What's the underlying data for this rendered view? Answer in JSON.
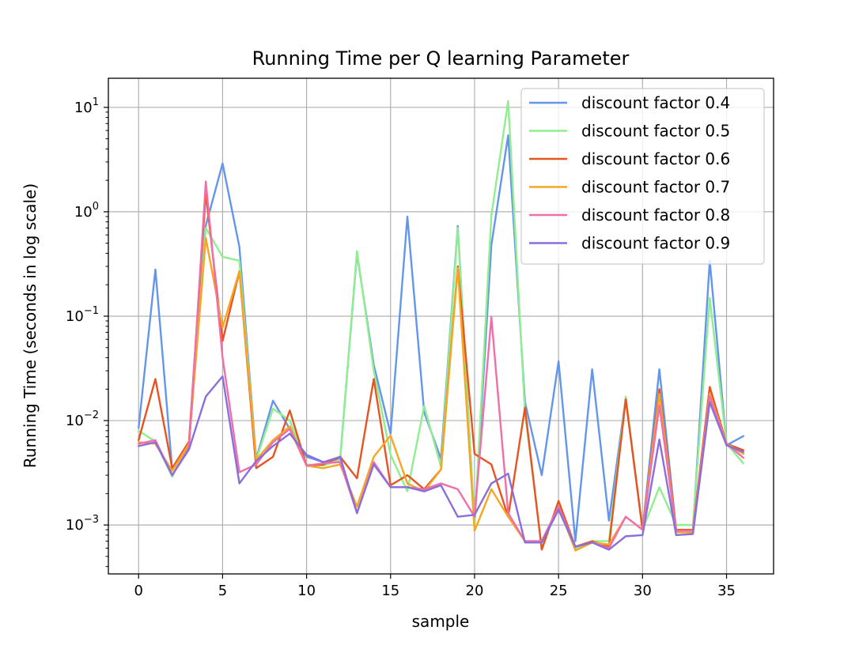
{
  "chart_data": {
    "type": "line",
    "title": "Running Time per Q learning Parameter",
    "xlabel": "sample",
    "ylabel": "Running Time (seconds in log scale)",
    "xlim": [
      -1.8,
      37.8
    ],
    "ylim": [
      0.00034,
      19
    ],
    "yscale": "log",
    "grid": true,
    "legend_position": "top-right",
    "x_ticks": [
      0,
      5,
      10,
      15,
      20,
      25,
      30,
      35
    ],
    "y_ticks": [
      {
        "value": 0.001,
        "base": "10",
        "exp": "−3"
      },
      {
        "value": 0.01,
        "base": "10",
        "exp": "−2"
      },
      {
        "value": 0.1,
        "base": "10",
        "exp": "−1"
      },
      {
        "value": 1,
        "base": "10",
        "exp": "0"
      },
      {
        "value": 10,
        "base": "10",
        "exp": "1"
      }
    ],
    "x": [
      0,
      1,
      2,
      3,
      4,
      5,
      6,
      7,
      8,
      9,
      10,
      11,
      12,
      13,
      14,
      15,
      16,
      17,
      18,
      19,
      20,
      21,
      22,
      23,
      24,
      25,
      26,
      27,
      28,
      29,
      30,
      31,
      32,
      33,
      34,
      35,
      36
    ],
    "series": [
      {
        "name": "discount factor 0.4",
        "color": "#6495ED",
        "values": [
          0.0085,
          0.28,
          0.0034,
          0.0058,
          0.74,
          2.9,
          0.46,
          0.0043,
          0.0155,
          0.0083,
          0.0045,
          0.004,
          0.0043,
          0.4,
          0.034,
          0.0075,
          0.9,
          0.012,
          0.0043,
          0.73,
          0.001,
          0.48,
          5.4,
          0.015,
          0.003,
          0.037,
          0.0007,
          0.031,
          0.0011,
          0.0165,
          0.0009,
          0.031,
          0.0009,
          0.0009,
          0.34,
          0.0058,
          0.0071
        ]
      },
      {
        "name": "discount factor 0.5",
        "color": "#90EE90",
        "values": [
          0.008,
          0.0063,
          0.0029,
          0.0063,
          0.7,
          0.37,
          0.34,
          0.0042,
          0.013,
          0.01,
          0.0038,
          0.0037,
          0.0042,
          0.42,
          0.03,
          0.0047,
          0.0021,
          0.0138,
          0.0036,
          0.7,
          0.001,
          0.92,
          11.5,
          0.012,
          0.0006,
          0.0016,
          0.0006,
          0.0007,
          0.0007,
          0.017,
          0.0009,
          0.0023,
          0.001,
          0.001,
          0.15,
          0.006,
          0.0039
        ]
      },
      {
        "name": "discount factor 0.6",
        "color": "#E9531F",
        "values": [
          0.0065,
          0.025,
          0.0035,
          0.0063,
          1.5,
          0.058,
          0.27,
          0.0035,
          0.0045,
          0.0125,
          0.0037,
          0.0038,
          0.0045,
          0.0028,
          0.025,
          0.0024,
          0.003,
          0.0022,
          0.0034,
          0.3,
          0.0048,
          0.0038,
          0.0012,
          0.0133,
          0.00058,
          0.0017,
          0.00062,
          0.0007,
          0.00062,
          0.016,
          0.0009,
          0.02,
          0.0009,
          0.0009,
          0.021,
          0.006,
          0.0052
        ]
      },
      {
        "name": "discount factor 0.7",
        "color": "#F5A623",
        "values": [
          0.0062,
          0.006,
          0.0033,
          0.006,
          0.56,
          0.078,
          0.27,
          0.0042,
          0.0065,
          0.0088,
          0.0037,
          0.0035,
          0.0038,
          0.0015,
          0.0045,
          0.0072,
          0.0025,
          0.0021,
          0.0034,
          0.29,
          0.00088,
          0.0022,
          0.0012,
          0.0007,
          0.0007,
          0.0015,
          0.00057,
          0.00068,
          0.00065,
          0.0012,
          0.0009,
          0.018,
          0.00085,
          0.00085,
          0.018,
          0.006,
          0.0048
        ]
      },
      {
        "name": "discount factor 0.8",
        "color": "#F06FAA",
        "values": [
          0.006,
          0.0065,
          0.003,
          0.0055,
          1.95,
          0.04,
          0.0032,
          0.0038,
          0.0062,
          0.0083,
          0.0037,
          0.0039,
          0.004,
          0.0013,
          0.004,
          0.0023,
          0.0023,
          0.0022,
          0.0025,
          0.0022,
          0.0012,
          0.098,
          0.0013,
          0.0007,
          0.0007,
          0.0015,
          0.00062,
          0.00068,
          0.0006,
          0.0012,
          0.0009,
          0.014,
          0.00088,
          0.00088,
          0.017,
          0.006,
          0.0044
        ]
      },
      {
        "name": "discount factor 0.9",
        "color": "#8A6FDA",
        "values": [
          0.0057,
          0.0062,
          0.003,
          0.0053,
          0.017,
          0.0265,
          0.0025,
          0.0041,
          0.0057,
          0.0075,
          0.0047,
          0.004,
          0.0045,
          0.0013,
          0.0038,
          0.0023,
          0.0023,
          0.0021,
          0.0024,
          0.0012,
          0.00125,
          0.0025,
          0.0031,
          0.00068,
          0.00068,
          0.0014,
          0.00062,
          0.00068,
          0.00058,
          0.00078,
          0.0008,
          0.0066,
          0.0008,
          0.00082,
          0.015,
          0.0058,
          0.005
        ]
      }
    ]
  }
}
